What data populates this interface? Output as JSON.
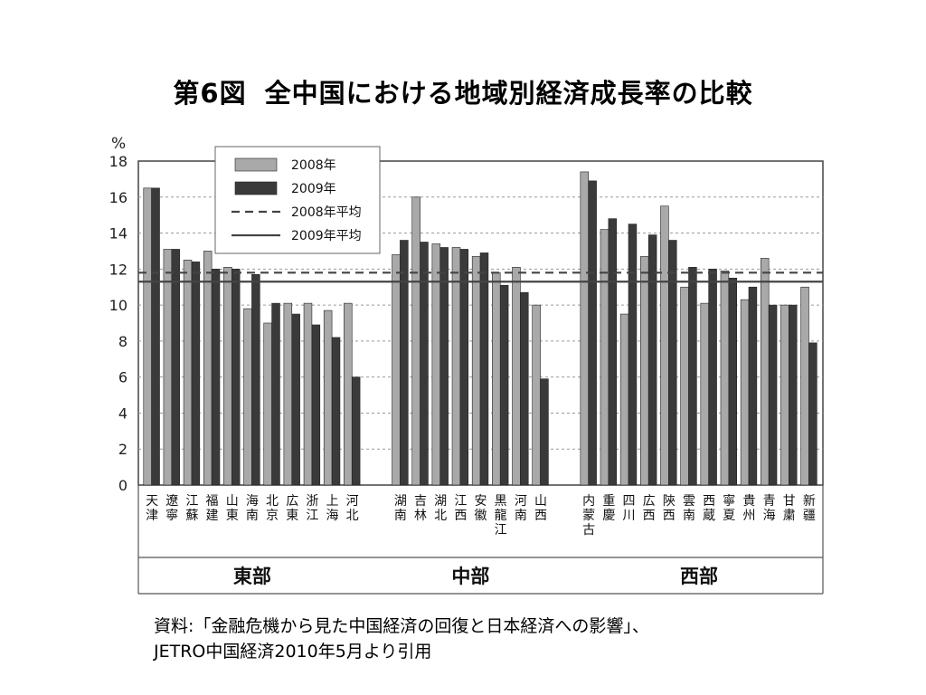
{
  "page": {
    "title_fig": "第6図",
    "title_text": "全中国における地域別経済成長率の比較",
    "source_line1": "資料:「金融危機から見た中国経済の回復と日本経済への影響」、",
    "source_line2": "JETRO中国経済2010年5月より引用"
  },
  "chart_data": {
    "type": "bar",
    "y_unit": "%",
    "ylim": [
      0,
      18
    ],
    "yticks": [
      0,
      2,
      4,
      6,
      8,
      10,
      12,
      14,
      16,
      18
    ],
    "grid": true,
    "legend_position": "top-left",
    "groups": [
      {
        "name": "東部",
        "categories": [
          "天津",
          "遼寧",
          "江蘇",
          "福建",
          "山東",
          "海南",
          "北京",
          "広東",
          "浙江",
          "上海",
          "河北"
        ]
      },
      {
        "name": "中部",
        "categories": [
          "湖南",
          "吉林",
          "湖北",
          "江西",
          "安徽",
          "黒龍江",
          "河南",
          "山西"
        ]
      },
      {
        "name": "西部",
        "categories": [
          "内蒙古",
          "重慶",
          "四川",
          "広西",
          "陝西",
          "雲南",
          "西蔵",
          "寧夏",
          "貴州",
          "青海",
          "甘粛",
          "新疆"
        ]
      }
    ],
    "series": [
      {
        "name": "2008年",
        "color": "#a9a9a9",
        "values": [
          16.5,
          13.1,
          12.5,
          13.0,
          12.1,
          9.8,
          9.0,
          10.1,
          10.1,
          9.7,
          10.1,
          12.8,
          16.0,
          13.4,
          13.2,
          12.7,
          11.8,
          12.1,
          10.0,
          17.4,
          14.2,
          9.5,
          12.7,
          15.5,
          11.0,
          10.1,
          11.9,
          10.3,
          12.6,
          10.0,
          11.0
        ]
      },
      {
        "name": "2009年",
        "color": "#3a3a3a",
        "values": [
          16.5,
          13.1,
          12.4,
          12.0,
          12.0,
          11.7,
          10.1,
          9.5,
          8.9,
          8.2,
          6.0,
          13.6,
          13.5,
          13.2,
          13.1,
          12.9,
          11.1,
          10.7,
          5.9,
          16.9,
          14.8,
          14.5,
          13.9,
          13.6,
          12.1,
          12.0,
          11.5,
          11.0,
          10.0,
          10.0,
          7.9
        ]
      }
    ],
    "averages": [
      {
        "name": "2008年平均",
        "value": 11.8,
        "style": "dashed"
      },
      {
        "name": "2009年平均",
        "value": 11.3,
        "style": "solid"
      }
    ]
  }
}
